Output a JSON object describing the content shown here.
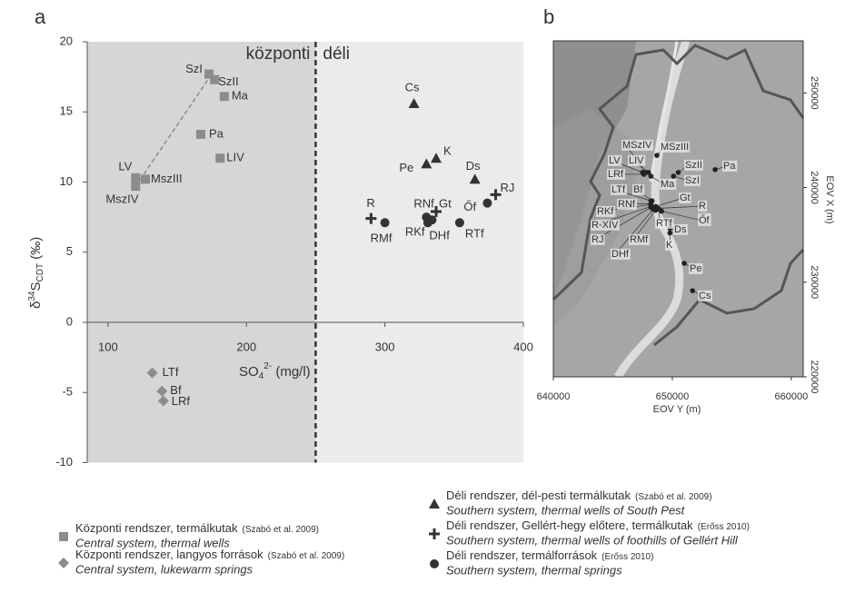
{
  "panel_labels": [
    "a",
    "b"
  ],
  "chart_data": {
    "type": "scatter",
    "xlabel": {
      "main": "SO",
      "sub": "4",
      "sup": "2-",
      "unit": " (mg/l)"
    },
    "ylabel": {
      "prefix": "δ",
      "sup": "34",
      "main": "S",
      "sub": "CDT",
      "unit": " (‰)"
    },
    "xlim": [
      85,
      400
    ],
    "ylim": [
      -10,
      20
    ],
    "xticks": [
      100,
      200,
      300,
      400
    ],
    "yticks": [
      -10,
      -5,
      0,
      5,
      10,
      15,
      20
    ],
    "divider_x": 250,
    "regions": [
      "központi",
      "déli"
    ],
    "region_colors": [
      "#d6d6d6",
      "#ebebeb"
    ],
    "trendline": {
      "x": [
        120,
        175
      ],
      "y": [
        9.7,
        17.7
      ],
      "color": "#8c8c8c"
    },
    "series": [
      {
        "name": "Központi rendszer, termálkutak",
        "citation": "(Szabó et al. 2009)",
        "name_en": "Central system, thermal wells",
        "marker": "square",
        "color": "#8c8c8c",
        "labels": [
          "SzI",
          "SzII",
          "Ma",
          "Pa",
          "LIV",
          "LV",
          "MszIII",
          "MszIV"
        ],
        "x": [
          173,
          177,
          184,
          167,
          181,
          120,
          127,
          120
        ],
        "y": [
          17.7,
          17.3,
          16.1,
          13.4,
          11.7,
          10.3,
          10.2,
          9.7
        ]
      },
      {
        "name": "Központi rendszer, langyos források",
        "citation": "(Szabó et al. 2009)",
        "name_en": "Central system, lukewarm springs",
        "marker": "diamond",
        "color": "#8c8c8c",
        "labels": [
          "LTf",
          "Bf",
          "LRf"
        ],
        "x": [
          132,
          139,
          140
        ],
        "y": [
          -3.6,
          -4.9,
          -5.6
        ]
      },
      {
        "name": "Déli rendszer, dél-pesti termálkutak",
        "citation": "(Szabó et al. 2009)",
        "name_en": "Southern system, thermal wells of South Pest",
        "marker": "triangle",
        "color": "#333333",
        "labels": [
          "Cs",
          "K",
          "Pe",
          "Ds"
        ],
        "x": [
          321,
          337,
          330,
          365
        ],
        "y": [
          15.6,
          11.7,
          11.3,
          10.2
        ]
      },
      {
        "name": "Déli rendszer, Gellért-hegy előtere, termálkutak",
        "citation": "(Erőss 2010)",
        "name_en": "Southern system, thermal wells of foothills of Gellért Hill",
        "marker": "plus",
        "color": "#333333",
        "labels": [
          "R",
          "Gt",
          "RJ"
        ],
        "x": [
          290,
          337,
          380
        ],
        "y": [
          7.4,
          7.9,
          9.1
        ]
      },
      {
        "name": "Déli rendszer, termálforrások",
        "citation": "(Erőss 2010)",
        "name_en": "Southern system, thermal springs",
        "marker": "circle",
        "color": "#333333",
        "labels": [
          "RMf",
          "RNf",
          "RKf",
          "DHf",
          "RTf",
          "Őf"
        ],
        "x": [
          300,
          330,
          331,
          334,
          354,
          374
        ],
        "y": [
          7.1,
          7.5,
          7.1,
          7.3,
          7.1,
          8.5
        ]
      }
    ]
  },
  "map": {
    "xlabel": "EOV Y (m)",
    "ylabel": "EOV X (m)",
    "xlim": [
      640000,
      661000
    ],
    "ylim": [
      220000,
      255500
    ],
    "xticks": [
      640000,
      650000,
      660000
    ],
    "yticks": [
      220000,
      230000,
      240000,
      250000
    ],
    "sites": [
      {
        "label": "MSzIV",
        "x": 647800,
        "y": 241600
      },
      {
        "label": "MSzIII",
        "x": 648700,
        "y": 243400
      },
      {
        "label": "LV",
        "x": 647500,
        "y": 241600
      },
      {
        "label": "LIV",
        "x": 648000,
        "y": 241600
      },
      {
        "label": "LRf",
        "x": 647600,
        "y": 241400
      },
      {
        "label": "Ma",
        "x": 648200,
        "y": 241200
      },
      {
        "label": "SzII",
        "x": 650500,
        "y": 241600
      },
      {
        "label": "SzI",
        "x": 650100,
        "y": 241200
      },
      {
        "label": "Pa",
        "x": 653600,
        "y": 241900
      },
      {
        "label": "LTf",
        "x": 648200,
        "y": 238600
      },
      {
        "label": "Bf",
        "x": 648300,
        "y": 238600
      },
      {
        "label": "RKf",
        "x": 648200,
        "y": 238200
      },
      {
        "label": "RNf",
        "x": 648200,
        "y": 238300
      },
      {
        "label": "R-XIV",
        "x": 648200,
        "y": 238000
      },
      {
        "label": "RJ",
        "x": 648200,
        "y": 237900
      },
      {
        "label": "RMf",
        "x": 648600,
        "y": 237600
      },
      {
        "label": "DHf",
        "x": 648400,
        "y": 237700
      },
      {
        "label": "RTf",
        "x": 648900,
        "y": 237700
      },
      {
        "label": "Gt",
        "x": 648600,
        "y": 238000
      },
      {
        "label": "R",
        "x": 648800,
        "y": 237800
      },
      {
        "label": "Őf",
        "x": 649100,
        "y": 237500
      },
      {
        "label": "Ds",
        "x": 649800,
        "y": 235700
      },
      {
        "label": "K",
        "x": 649800,
        "y": 235200
      },
      {
        "label": "Pe",
        "x": 651000,
        "y": 232000
      },
      {
        "label": "Cs",
        "x": 651700,
        "y": 229100
      }
    ]
  }
}
